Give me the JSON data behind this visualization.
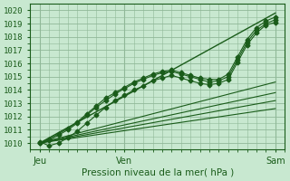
{
  "xlabel": "Pression niveau de la mer( hPa )",
  "bg_color": "#c8e8d0",
  "grid_color": "#90b898",
  "line_color": "#1a5c1a",
  "ylim": [
    1009.5,
    1020.5
  ],
  "xlim": [
    0,
    54
  ],
  "xtick_positions": [
    2,
    20,
    52
  ],
  "xtick_labels": [
    "Jeu",
    "Ven",
    "Sam"
  ],
  "ytick_start": 1010,
  "ytick_end": 1020,
  "ytick_step": 1,
  "vline_positions": [
    2,
    20,
    52
  ],
  "lines": [
    {
      "x": [
        2,
        52
      ],
      "y": [
        1010.0,
        1019.8
      ],
      "marker": null,
      "ms": 0,
      "lw": 1.0
    },
    {
      "x": [
        2,
        4,
        6,
        8,
        10,
        12,
        14,
        16,
        18,
        20,
        22,
        24,
        26,
        28,
        30,
        32,
        34,
        36,
        38,
        40,
        42,
        44,
        46,
        48,
        50,
        52
      ],
      "y": [
        1010.0,
        1010.3,
        1010.7,
        1011.1,
        1011.6,
        1012.2,
        1012.8,
        1013.4,
        1013.8,
        1014.2,
        1014.6,
        1014.9,
        1015.2,
        1015.4,
        1015.5,
        1015.3,
        1015.1,
        1014.9,
        1014.8,
        1014.8,
        1015.2,
        1016.5,
        1017.8,
        1018.7,
        1019.2,
        1019.5
      ],
      "marker": "D",
      "ms": 2.5,
      "lw": 0.8
    },
    {
      "x": [
        2,
        4,
        6,
        8,
        10,
        12,
        14,
        16,
        18,
        20,
        22,
        24,
        26,
        28,
        30,
        32,
        34,
        36,
        38,
        40,
        42,
        44,
        46,
        48,
        50,
        52
      ],
      "y": [
        1010.0,
        1010.2,
        1010.6,
        1011.0,
        1011.5,
        1012.1,
        1012.7,
        1013.2,
        1013.7,
        1014.1,
        1014.5,
        1014.8,
        1015.1,
        1015.3,
        1015.4,
        1015.2,
        1015.0,
        1014.8,
        1014.6,
        1014.7,
        1015.0,
        1016.3,
        1017.6,
        1018.5,
        1019.0,
        1019.3
      ],
      "marker": "D",
      "ms": 2.5,
      "lw": 0.8
    },
    {
      "x": [
        2,
        4,
        6,
        8,
        10,
        12,
        14,
        16,
        18,
        20,
        22,
        24,
        26,
        28,
        30,
        32,
        34,
        36,
        38,
        40,
        42,
        44,
        46,
        48,
        50,
        52
      ],
      "y": [
        1010.1,
        1009.8,
        1010.0,
        1010.4,
        1010.9,
        1011.5,
        1012.1,
        1012.7,
        1013.2,
        1013.6,
        1014.0,
        1014.3,
        1014.7,
        1014.9,
        1015.1,
        1014.9,
        1014.7,
        1014.5,
        1014.4,
        1014.5,
        1014.8,
        1016.1,
        1017.4,
        1018.3,
        1018.9,
        1019.1
      ],
      "marker": "D",
      "ms": 2.5,
      "lw": 0.8
    },
    {
      "x": [
        2,
        52
      ],
      "y": [
        1010.0,
        1014.6
      ],
      "marker": null,
      "ms": 0,
      "lw": 0.8
    },
    {
      "x": [
        2,
        52
      ],
      "y": [
        1010.0,
        1013.8
      ],
      "marker": null,
      "ms": 0,
      "lw": 0.8
    },
    {
      "x": [
        2,
        52
      ],
      "y": [
        1010.0,
        1013.2
      ],
      "marker": null,
      "ms": 0,
      "lw": 0.8
    },
    {
      "x": [
        2,
        52
      ],
      "y": [
        1010.0,
        1012.6
      ],
      "marker": null,
      "ms": 0,
      "lw": 0.8
    }
  ]
}
